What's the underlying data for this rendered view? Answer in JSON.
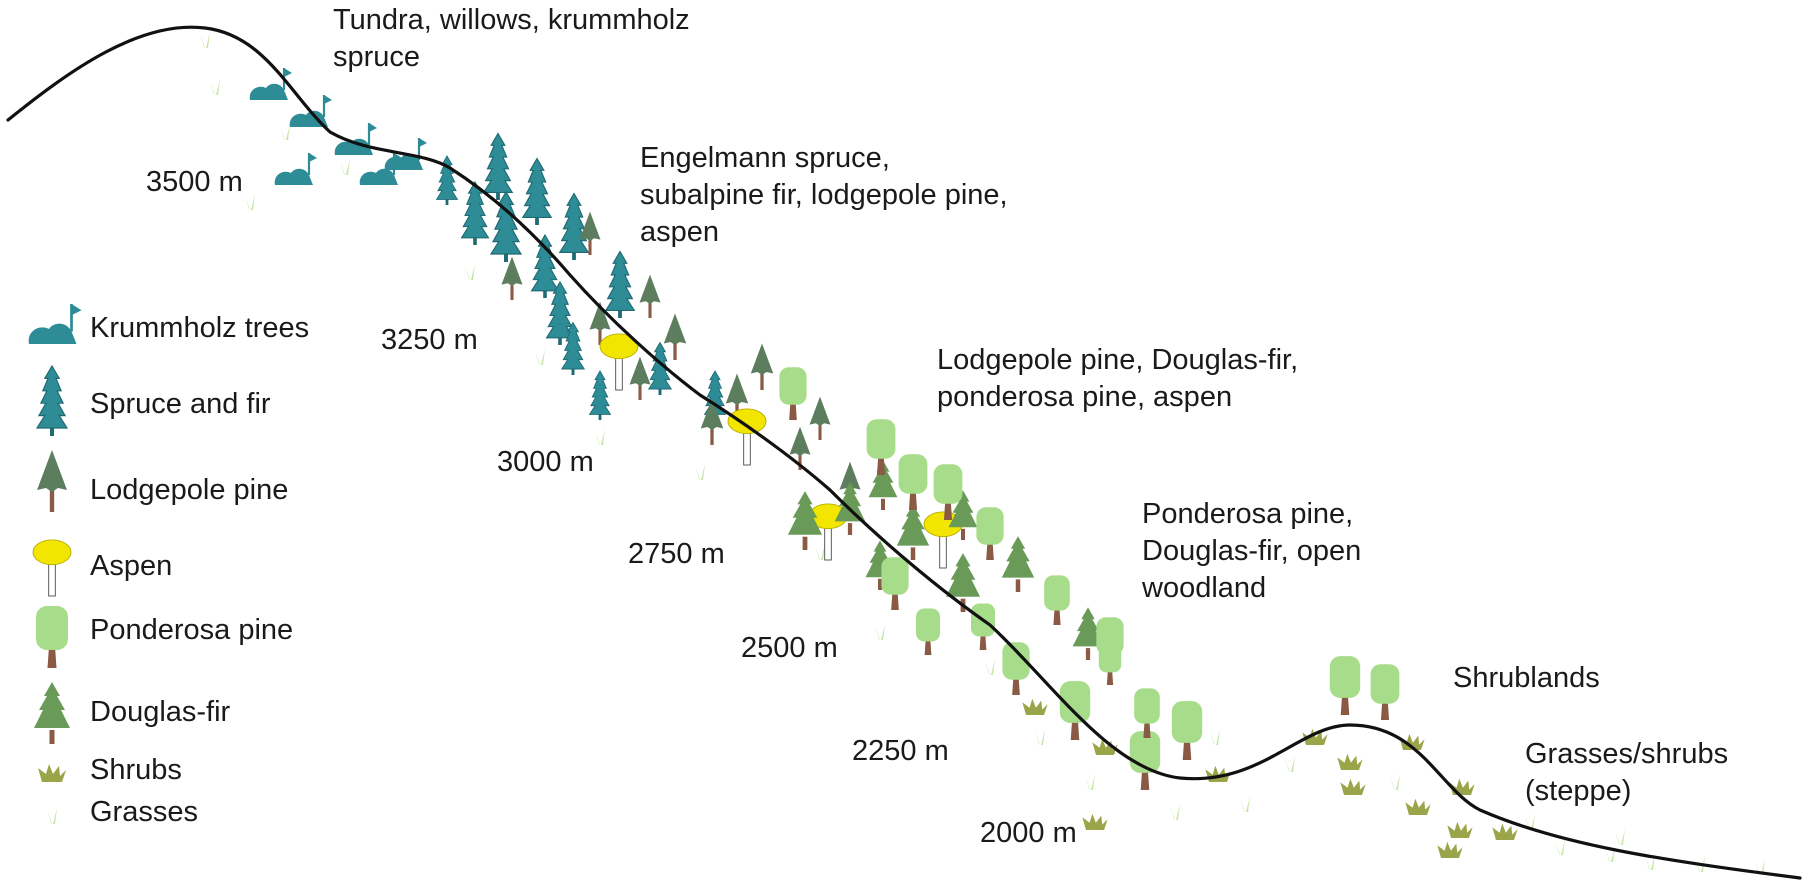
{
  "zones": [
    {
      "id": "tundra",
      "lines": [
        "Tundra, willows, krummholz",
        "spruce"
      ]
    },
    {
      "id": "subalpine",
      "lines": [
        "Engelmann spruce,",
        "subalpine fir, lodgepole pine,",
        "aspen"
      ]
    },
    {
      "id": "montane",
      "lines": [
        "Lodgepole pine, Douglas-fir,",
        "ponderosa pine, aspen"
      ]
    },
    {
      "id": "foothill",
      "lines": [
        "Ponderosa pine,",
        "Douglas-fir, open",
        "woodland"
      ]
    },
    {
      "id": "shrublands",
      "lines": [
        "Shrublands"
      ]
    },
    {
      "id": "steppe",
      "lines": [
        "Grasses/shrubs",
        "(steppe)"
      ]
    }
  ],
  "elevations": [
    "3500 m",
    "3250 m",
    "3000 m",
    "2750 m",
    "2500 m",
    "2250 m",
    "2000 m"
  ],
  "legend": [
    {
      "icon": "krummholz",
      "label": "Krummholz trees"
    },
    {
      "icon": "spruce",
      "label": "Spruce and fir"
    },
    {
      "icon": "lodgepole",
      "label": "Lodgepole pine"
    },
    {
      "icon": "aspen",
      "label": "Aspen"
    },
    {
      "icon": "ponderosa",
      "label": "Ponderosa pine"
    },
    {
      "icon": "douglas",
      "label": "Douglas-fir"
    },
    {
      "icon": "shrub",
      "label": "Shrubs"
    },
    {
      "icon": "grass",
      "label": "Grasses"
    }
  ],
  "colors": {
    "spruce": "#2e8c96",
    "spruce_dark": "#1f6a73",
    "lodgepole": "#5d7e5e",
    "douglas": "#6a9a58",
    "ponderosa": "#a6dc8a",
    "trunk": "#8a5a44",
    "aspen_crown": "#f2e600",
    "shrub": "#9aa448",
    "grass": "#c7e5a8",
    "ridge": "#111111"
  }
}
